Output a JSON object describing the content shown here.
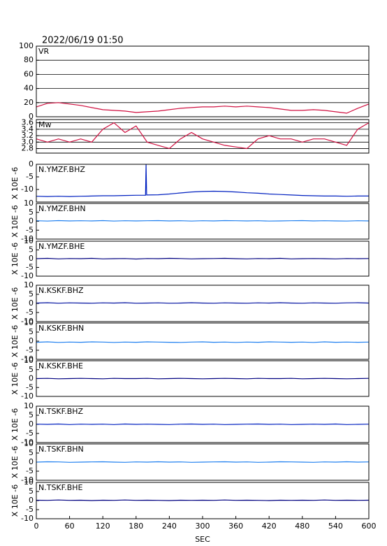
{
  "chart_data": [
    {
      "type": "line",
      "title": "2022/06/19 01:50",
      "panel_label": "VR",
      "color": "#d01040",
      "grid": true,
      "x": [
        0,
        20,
        40,
        60,
        80,
        100,
        120,
        140,
        160,
        180,
        200,
        220,
        240,
        260,
        280,
        300,
        320,
        340,
        360,
        380,
        400,
        420,
        440,
        460,
        480,
        500,
        520,
        540,
        560,
        580,
        600
      ],
      "values": [
        14,
        19,
        20,
        18,
        16,
        13,
        10,
        9,
        8,
        6,
        7,
        8,
        10,
        12,
        13,
        14,
        14,
        15,
        14,
        15,
        14,
        13,
        11,
        9,
        9,
        10,
        9,
        7,
        5,
        12,
        18
      ],
      "xlim": [
        0,
        600
      ],
      "ylim": [
        0,
        100
      ],
      "yticks": [
        0,
        20,
        40,
        60,
        80,
        100
      ]
    },
    {
      "type": "line",
      "panel_label": "Mw",
      "color": "#d01040",
      "grid": true,
      "x": [
        0,
        20,
        40,
        60,
        80,
        100,
        120,
        140,
        160,
        180,
        200,
        220,
        240,
        260,
        280,
        300,
        320,
        340,
        360,
        380,
        400,
        420,
        440,
        460,
        480,
        500,
        520,
        540,
        560,
        580,
        600
      ],
      "values": [
        3.1,
        3.0,
        3.1,
        3.0,
        3.1,
        3.0,
        3.4,
        3.6,
        3.3,
        3.5,
        3.0,
        2.9,
        2.8,
        3.1,
        3.3,
        3.1,
        3.0,
        2.9,
        2.85,
        2.8,
        3.1,
        3.2,
        3.1,
        3.1,
        3.0,
        3.1,
        3.1,
        3.0,
        2.9,
        3.4,
        3.6
      ],
      "xlim": [
        0,
        600
      ],
      "ylim": [
        2.66,
        3.7
      ],
      "yticks": [
        2.8,
        {
          "value": 3,
          "label": "3.0"
        },
        3.2,
        3.4,
        3.6
      ]
    },
    {
      "type": "line",
      "panel_label": "N.YMZF.BHZ",
      "ylabel": "X 10E -6",
      "color": "#0020c0",
      "x": [
        0,
        20,
        40,
        60,
        80,
        100,
        120,
        140,
        160,
        180,
        197,
        198,
        199,
        220,
        240,
        260,
        280,
        300,
        320,
        340,
        360,
        380,
        400,
        420,
        440,
        460,
        480,
        500,
        520,
        540,
        560,
        580,
        600
      ],
      "values": [
        -12.7,
        -12.8,
        -12.7,
        -12.8,
        -12.7,
        -12.6,
        -12.5,
        -12.5,
        -12.4,
        -12.3,
        -12.3,
        0,
        -12.2,
        -12.1,
        -11.8,
        -11.4,
        -11,
        -10.8,
        -10.7,
        -10.8,
        -11,
        -11.3,
        -11.5,
        -11.8,
        -12,
        -12.2,
        -12.4,
        -12.5,
        -12.6,
        -12.6,
        -12.7,
        -12.6,
        -12.6
      ],
      "xlim": [
        0,
        600
      ],
      "ylim": [
        -15,
        0
      ],
      "yticks": [
        -10,
        -5,
        0
      ]
    },
    {
      "type": "line",
      "panel_label": "N.YMZF.BHN",
      "ylabel": "X 10E -6",
      "color": "#2080f0",
      "x": [
        0,
        20,
        40,
        60,
        80,
        100,
        120,
        140,
        160,
        180,
        200,
        220,
        240,
        260,
        280,
        300,
        320,
        340,
        360,
        380,
        400,
        420,
        440,
        460,
        480,
        500,
        520,
        540,
        560,
        580,
        600
      ],
      "values": [
        0.3,
        0.1,
        0.4,
        0.2,
        0.3,
        0.2,
        0.4,
        0.1,
        0.3,
        0.2,
        0.3,
        0.4,
        0.2,
        0.3,
        0.1,
        0.3,
        0.2,
        0.4,
        0.3,
        0.2,
        0.3,
        0.1,
        0.2,
        0.3,
        0.4,
        0.2,
        0.3,
        0.2,
        0.1,
        0.3,
        0.2
      ],
      "xlim": [
        0,
        600
      ],
      "ylim": [
        -10,
        10
      ],
      "yticks": [
        -10,
        -5,
        0,
        5,
        10
      ]
    },
    {
      "type": "line",
      "panel_label": "N.YMZF.BHE",
      "ylabel": "X 10E -6",
      "color": "#000080",
      "x": [
        0,
        20,
        40,
        60,
        80,
        100,
        120,
        140,
        160,
        180,
        200,
        220,
        240,
        260,
        280,
        300,
        320,
        340,
        360,
        380,
        400,
        420,
        440,
        460,
        480,
        500,
        520,
        540,
        560,
        580,
        600
      ],
      "values": [
        0,
        0.2,
        -0.1,
        0.1,
        0,
        0.2,
        -0.1,
        0,
        0.1,
        -0.2,
        0.1,
        0,
        0.2,
        0.1,
        -0.1,
        0,
        0.1,
        0.2,
        0,
        -0.1,
        0.1,
        0,
        0.2,
        -0.1,
        0,
        0.1,
        0,
        -0.1,
        0.1,
        0,
        0.1
      ],
      "xlim": [
        0,
        600
      ],
      "ylim": [
        -10,
        10
      ],
      "yticks": [
        -10,
        -5,
        0,
        5,
        10
      ]
    },
    {
      "type": "line",
      "panel_label": "N.KSKF.BHZ",
      "ylabel": "X 10E -6",
      "color": "#0010a0",
      "x": [
        0,
        20,
        40,
        60,
        80,
        100,
        120,
        140,
        160,
        180,
        200,
        220,
        240,
        260,
        280,
        300,
        320,
        340,
        360,
        380,
        400,
        420,
        440,
        460,
        480,
        500,
        520,
        540,
        560,
        580,
        600
      ],
      "values": [
        0.2,
        0.4,
        0.1,
        0.3,
        0.2,
        0.1,
        0.3,
        0.2,
        0.4,
        0.1,
        0.2,
        0.3,
        0.1,
        0.2,
        0.4,
        0.2,
        0.1,
        0.3,
        0.2,
        0.1,
        0.3,
        0.2,
        0.4,
        0.2,
        0.1,
        0.3,
        0.2,
        0.1,
        0.3,
        0.4,
        0.2
      ],
      "xlim": [
        0,
        600
      ],
      "ylim": [
        -10,
        10
      ],
      "yticks": [
        -10,
        -5,
        0,
        5,
        10
      ]
    },
    {
      "type": "line",
      "panel_label": "N.KSKF.BHN",
      "ylabel": "X 10E -6",
      "color": "#2080f0",
      "x": [
        0,
        20,
        40,
        60,
        80,
        100,
        120,
        140,
        160,
        180,
        200,
        220,
        240,
        260,
        280,
        300,
        320,
        340,
        360,
        380,
        400,
        420,
        440,
        460,
        480,
        500,
        520,
        540,
        560,
        580,
        600
      ],
      "values": [
        -0.6,
        -0.4,
        -0.7,
        -0.5,
        -0.6,
        -0.4,
        -0.5,
        -0.7,
        -0.5,
        -0.6,
        -0.4,
        -0.5,
        -0.6,
        -0.7,
        -0.5,
        -0.4,
        -0.6,
        -0.5,
        -0.7,
        -0.5,
        -0.6,
        -0.4,
        -0.5,
        -0.6,
        -0.5,
        -0.7,
        -0.4,
        -0.6,
        -0.5,
        -0.6,
        -0.5
      ],
      "xlim": [
        0,
        600
      ],
      "ylim": [
        -10,
        10
      ],
      "yticks": [
        -10,
        -5,
        0,
        5,
        10
      ]
    },
    {
      "type": "line",
      "panel_label": "N.KSKF.BHE",
      "ylabel": "X 10E -6",
      "color": "#000080",
      "x": [
        0,
        20,
        40,
        60,
        80,
        100,
        120,
        140,
        160,
        180,
        200,
        220,
        240,
        260,
        280,
        300,
        320,
        340,
        360,
        380,
        400,
        420,
        440,
        460,
        480,
        500,
        520,
        540,
        560,
        580,
        600
      ],
      "values": [
        0,
        0.1,
        -0.1,
        0,
        0.1,
        0,
        -0.1,
        0.1,
        0,
        0,
        0.1,
        -0.1,
        0,
        0.1,
        0,
        -0.1,
        0,
        0.1,
        0,
        -0.1,
        0.1,
        0,
        0,
        0.1,
        -0.1,
        0,
        0.1,
        0,
        -0.1,
        0,
        0.1
      ],
      "xlim": [
        0,
        600
      ],
      "ylim": [
        -10,
        10
      ],
      "yticks": [
        -10,
        -5,
        0,
        5,
        10
      ]
    },
    {
      "type": "line",
      "panel_label": "N.TSKF.BHZ",
      "ylabel": "X 10E -6",
      "color": "#0020c0",
      "x": [
        0,
        20,
        40,
        60,
        80,
        100,
        120,
        140,
        160,
        180,
        200,
        220,
        240,
        260,
        280,
        300,
        320,
        340,
        360,
        380,
        400,
        420,
        440,
        460,
        480,
        500,
        520,
        540,
        560,
        580,
        600
      ],
      "values": [
        0.1,
        0,
        0.2,
        -0.1,
        0.1,
        0,
        0.1,
        -0.1,
        0.2,
        0,
        0.1,
        0,
        -0.1,
        0.1,
        0.2,
        0,
        0.1,
        -0.1,
        0,
        0.1,
        0.2,
        0,
        0.1,
        -0.1,
        0,
        0.1,
        0,
        0.2,
        -0.1,
        0,
        0.1
      ],
      "xlim": [
        0,
        600
      ],
      "ylim": [
        -10,
        10
      ],
      "yticks": [
        -10,
        -5,
        0,
        5,
        10
      ]
    },
    {
      "type": "line",
      "panel_label": "N.TSKF.BHN",
      "ylabel": "X 10E -6",
      "color": "#2080f0",
      "x": [
        0,
        20,
        40,
        60,
        80,
        100,
        120,
        140,
        160,
        180,
        200,
        220,
        240,
        260,
        280,
        300,
        320,
        340,
        360,
        380,
        400,
        420,
        440,
        460,
        480,
        500,
        520,
        540,
        560,
        580,
        600
      ],
      "values": [
        0,
        0.2,
        0.1,
        -0.1,
        0,
        0.1,
        0.2,
        0,
        -0.1,
        0.1,
        0,
        0.2,
        0,
        0.1,
        -0.1,
        0,
        0.1,
        0.2,
        0,
        0.1,
        -0.1,
        0,
        0.2,
        0.1,
        0,
        -0.1,
        0.1,
        0,
        0.2,
        0,
        0.1
      ],
      "xlim": [
        0,
        600
      ],
      "ylim": [
        -10,
        10
      ],
      "yticks": [
        -10,
        -5,
        0,
        5,
        10
      ]
    },
    {
      "type": "line",
      "panel_label": "N.TSKF.BHE",
      "ylabel": "X 10E -6",
      "xlabel": "SEC",
      "color": "#000080",
      "x": [
        0,
        20,
        40,
        60,
        80,
        100,
        120,
        140,
        160,
        180,
        200,
        220,
        240,
        260,
        280,
        300,
        320,
        340,
        360,
        380,
        400,
        420,
        440,
        460,
        480,
        500,
        520,
        540,
        560,
        580,
        600
      ],
      "values": [
        0.2,
        0.1,
        0.3,
        0.1,
        0.2,
        0,
        0.2,
        0.1,
        0.3,
        0.1,
        0.2,
        0.1,
        0,
        0.2,
        0.1,
        0.2,
        0.1,
        0.3,
        0.1,
        0.2,
        0.1,
        0,
        0.2,
        0.1,
        0.2,
        0.1,
        0.3,
        0.1,
        0.2,
        0.1,
        0.2
      ],
      "xlim": [
        0,
        600
      ],
      "ylim": [
        -10,
        10
      ],
      "yticks": [
        -10,
        -5,
        0,
        5,
        10
      ],
      "xticks": [
        0,
        60,
        120,
        180,
        240,
        300,
        360,
        420,
        480,
        540,
        600
      ]
    }
  ]
}
